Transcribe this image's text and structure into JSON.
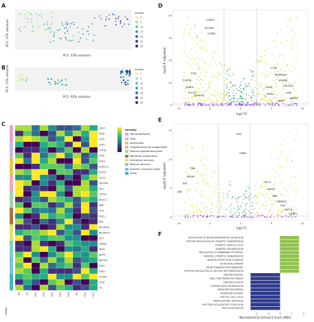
{
  "panels": {
    "A": {
      "letter": "A",
      "yaxis": "PC2: 17% variance",
      "xaxis": "PC1: 43% variance",
      "legend_title": "passage",
      "legend": [
        "0",
        "5",
        "10",
        "15",
        "20",
        "25",
        "30"
      ]
    },
    "B": {
      "letter": "B",
      "yaxis": "PC2: 17% variance",
      "xaxis": "PC1: 62% variance",
      "legend_title": "passage",
      "legend": [
        "0",
        "5",
        "10",
        "15",
        "20",
        "25",
        "30"
      ]
    },
    "C": {
      "letter": "C",
      "legend_title": "Identity",
      "identity": [
        "Neuroepithelial",
        "Glial",
        "Astrocytes",
        "Oligodendrocyte progenitors",
        "Mature oligodendrocytes",
        "Neuronal progenitors",
        "Immature neurons",
        "Mature neurons",
        "Specific neuronal types",
        "Other"
      ],
      "identity_colors": [
        "#f0a0c8",
        "#c7b8e8",
        "#e7c84c",
        "#f5a3b8",
        "#9fd5a8",
        "#b07040",
        "#e6e06a",
        "#7dd1c8",
        "#7ac0e8",
        "#3fb5d0"
      ],
      "genes": [
        "CD45",
        "NCFA",
        "SOX1",
        "SOX2",
        "S100B",
        "GFAP",
        "OLIG1",
        "ALDH1L1",
        "SOX10",
        "OLIG2",
        "PDGFRA",
        "NG2",
        "CSPG4",
        "NKX2.2",
        "MBP",
        "PLP1",
        "ASCL1",
        "NES",
        "NEUROD1",
        "NEUROG2",
        "DCX",
        "TUBB3",
        "MAP2",
        "NEFM",
        "RBFOX3",
        "SYN1",
        "GAD1",
        "SLC6A1",
        "CHAT",
        "TH"
      ],
      "sample_labels": [
        "P0",
        "P5",
        "P10",
        "P15",
        "P20",
        "P25",
        "P30",
        "P5",
        "P10",
        "P15"
      ],
      "xaxis": "Identity"
    },
    "D": {
      "letter": "D",
      "yaxis": "-log10 P (adjusted)",
      "xaxis": "log2 FC",
      "xticks": [
        "-10",
        "-5",
        "0",
        "5",
        "10"
      ],
      "yticks": [
        "0",
        "10",
        "20",
        "30",
        "40"
      ],
      "labels": [
        "GLRA3",
        "SLC6A1",
        "CLRN1",
        "VTN",
        "POSTN",
        "CASP4",
        "PLCG2",
        "TNFRSF1",
        "CTSS",
        "SERPINA3",
        "SUSD6",
        "COL3A1",
        "LUM",
        "ANPEP",
        "CD44",
        "PDPN",
        "MMP2"
      ]
    },
    "E": {
      "letter": "E",
      "yaxis": "-log10 P (adjusted)",
      "xaxis": "log2 FC",
      "xticks": [
        "-10",
        "-5",
        "0",
        "5",
        "10"
      ],
      "yticks": [
        "0",
        "5",
        "10",
        "15"
      ],
      "labels": [
        "XIST",
        "TXNIP",
        "TYW",
        "PROX1",
        "RPL",
        "ZNF",
        "GPC3",
        "LINC01",
        "HBA",
        "CDKN1A",
        "H19",
        "KRT18",
        "IGFBP2"
      ]
    },
    "F": {
      "letter": "F",
      "xaxis": "Normalized Enrichment Score (NES)",
      "xticks": [
        "-2",
        "-1",
        "0",
        "1",
        "2"
      ],
      "pathways": [
        {
          "name": "REGULATION OF NEUROTRANSMITTER SECRETION",
          "nes": 1.6
        },
        {
          "name": "POSITIVE REGULATION OF SYNAPTIC TRANSMISSION",
          "nes": 1.6
        },
        {
          "name": "SYNAPTIC VESICLE CYCLE",
          "nes": 1.6
        },
        {
          "name": "SYNAPSE ORGANIZATION",
          "nes": 1.6
        },
        {
          "name": "REGULATION OF MEMBRANE POTENTIAL",
          "nes": 1.6
        },
        {
          "name": "CHEMICAL SYNAPTIC TRANSMISSION",
          "nes": 1.6
        },
        {
          "name": "NEURON PROJECTION GUIDANCE",
          "nes": 1.6
        },
        {
          "name": "AXON DEVELOPMENT",
          "nes": 1.6
        },
        {
          "name": "NEUROTRANSMITTER TRANSPORT",
          "nes": 1.6
        },
        {
          "name": "POSITIVE REGULATION OF NEURON DIFFERENTIATION",
          "nes": 1.6
        },
        {
          "name": "RNA PROCESSING",
          "nes": -2.5
        },
        {
          "name": "DNA CONFORMATION CHANGE",
          "nes": -2.5
        },
        {
          "name": "DNA REPLICATION",
          "nes": -2.5
        },
        {
          "name": "CHROMOSOME SEGREGATION",
          "nes": -2.5
        },
        {
          "name": "RIBOSOME BIOGENESIS",
          "nes": -2.5
        },
        {
          "name": "NCRNA PROCESSING",
          "nes": -2.5
        },
        {
          "name": "MITOTIC CELL CYCLE",
          "nes": -2.5
        },
        {
          "name": "TRANSLATIONAL INITIATION",
          "nes": -2.5
        },
        {
          "name": "PROTEIN LOCALIZATION TO NUCLEUS",
          "nes": -2.5
        },
        {
          "name": "RNA LOCALIZATION",
          "nes": -2.5
        }
      ],
      "colors": {
        "up": "#8fc24a",
        "down": "#2e3a8c"
      }
    }
  }
}
